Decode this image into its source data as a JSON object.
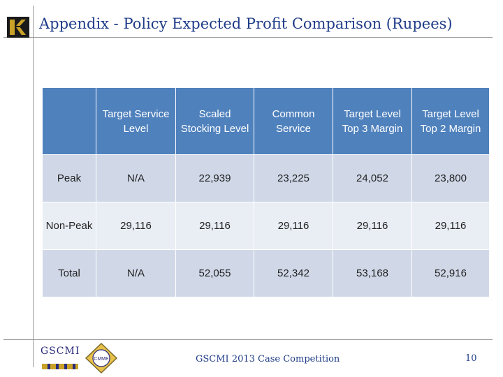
{
  "slide": {
    "title": "Appendix - Policy Expected Profit Comparison (Rupees)",
    "footer": "GSCMI 2013 Case Competition",
    "page_number": "10",
    "gscmi_logo_text": "GSCMI",
    "cmme_logo_text": "CMME"
  },
  "table": {
    "headers": [
      "",
      "Target Service Level",
      "Scaled Stocking Level",
      "Common Service",
      "Target Level Top 3 Margin",
      "Target Level Top 2 Margin"
    ],
    "rows": [
      {
        "label": "Peak",
        "cells": [
          "N/A",
          "22,939",
          "23,225",
          "24,052",
          "23,800"
        ]
      },
      {
        "label": "Non-Peak",
        "cells": [
          "29,116",
          "29,116",
          "29,116",
          "29,116",
          "29,116"
        ]
      },
      {
        "label": "Total",
        "cells": [
          "N/A",
          "52,055",
          "52,342",
          "53,168",
          "52,916"
        ]
      }
    ]
  },
  "colors": {
    "header_bg": "#4f81bd",
    "row_band_dark": "#d0d8e8",
    "row_band_light": "#e9edf4",
    "title_color": "#1f3c88",
    "logo_gold": "#c9a227"
  }
}
